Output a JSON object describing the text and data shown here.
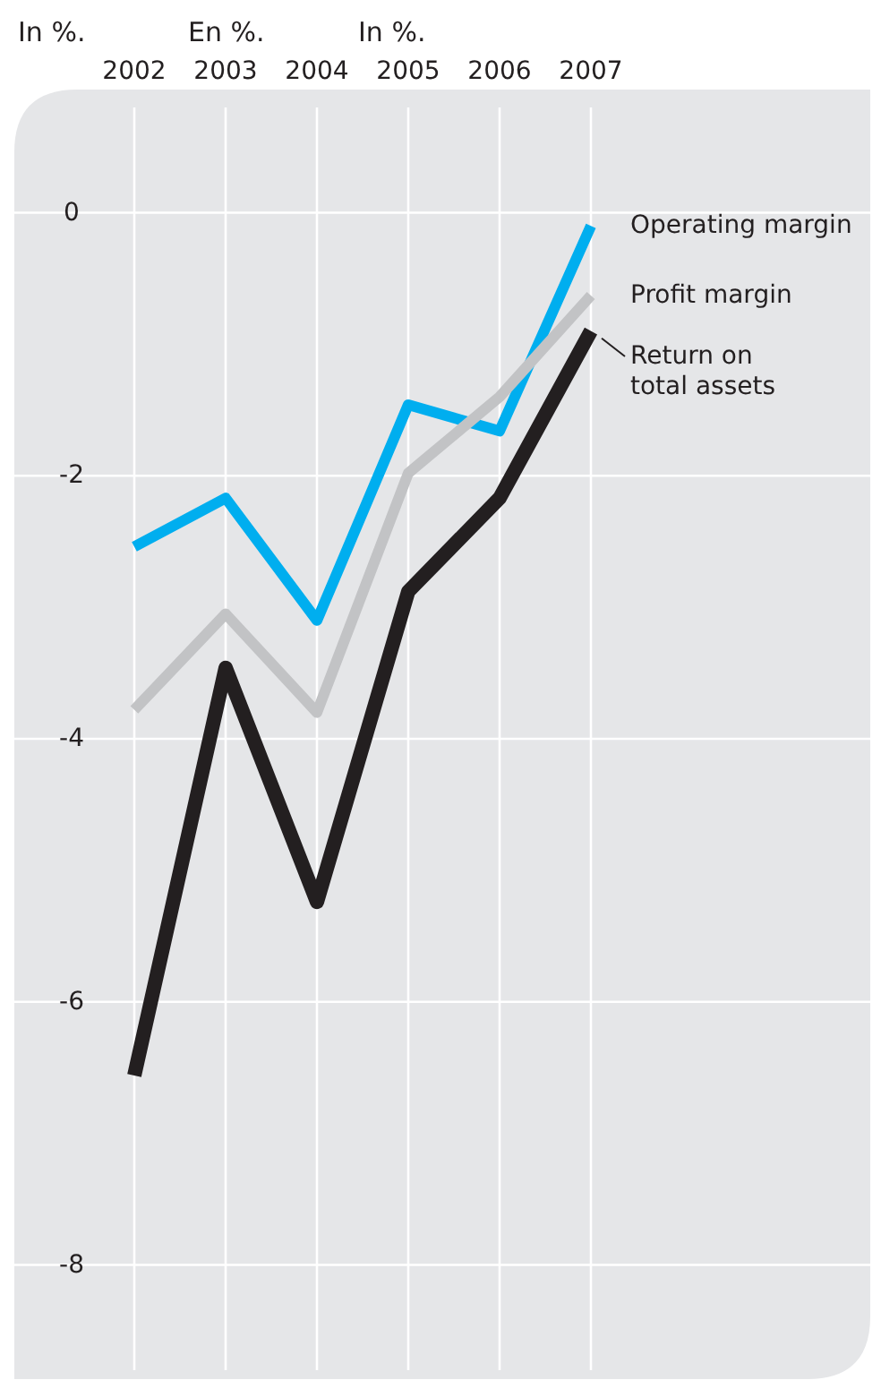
{
  "chart_data": {
    "type": "line",
    "ylabel": "In %.",
    "annotations": [
      "En %.",
      "In %."
    ],
    "categories": [
      "2002",
      "2003",
      "2004",
      "2005",
      "2006",
      "2007"
    ],
    "ylim": [
      -8.8,
      0.8
    ],
    "yticks": [
      0,
      -2,
      -4,
      -6,
      -8
    ],
    "grid": true,
    "marker": "none",
    "line_style": "solid",
    "series": [
      {
        "name": "Operating margin",
        "color": "#00aeef",
        "values": [
          -2.54,
          -2.17,
          -3.1,
          -1.46,
          -1.66,
          -0.1
        ]
      },
      {
        "name": "Profit margin",
        "color": "#c2c3c5",
        "values": [
          -3.78,
          -3.05,
          -3.8,
          -1.98,
          -1.4,
          -0.63
        ]
      },
      {
        "name": "Return on total assets",
        "color": "#231f20",
        "values": [
          -6.56,
          -3.46,
          -5.24,
          -2.88,
          -2.17,
          -0.9
        ]
      }
    ]
  }
}
